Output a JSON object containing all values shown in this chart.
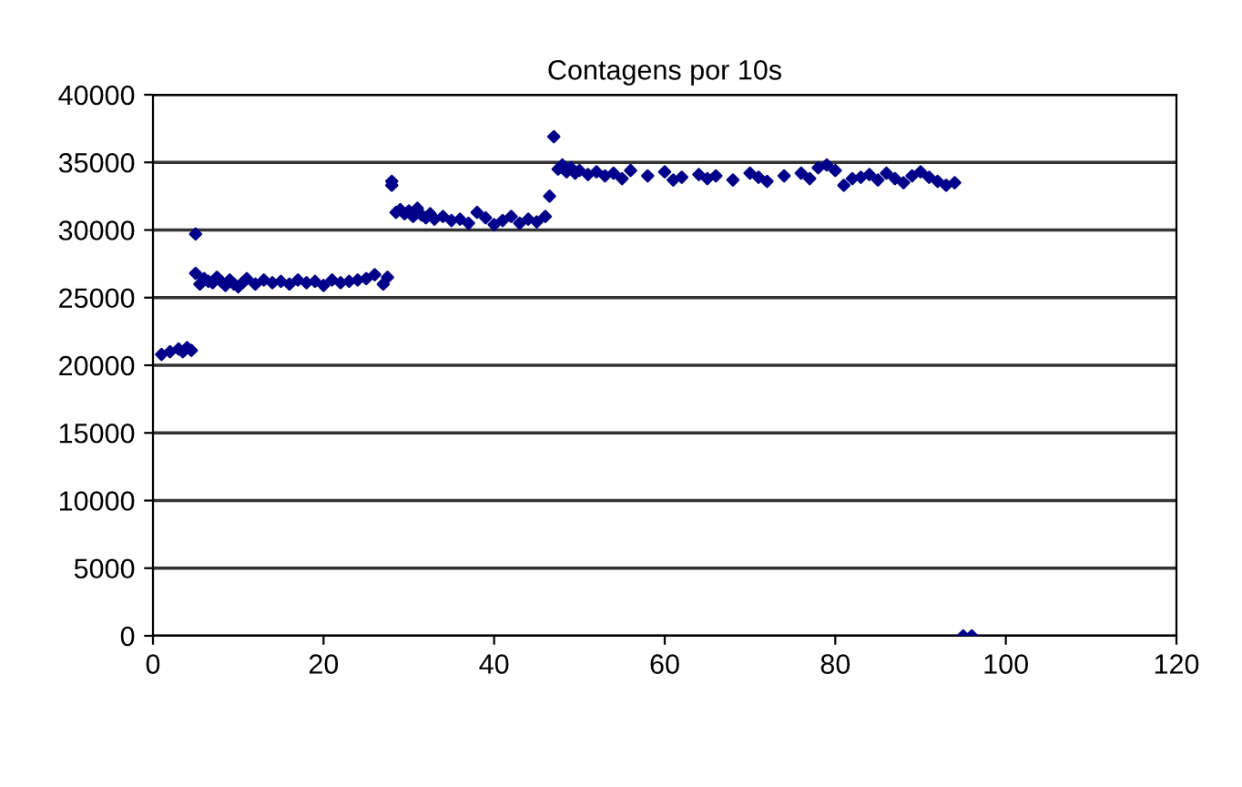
{
  "chart_data": {
    "type": "scatter",
    "title": "Contagens por 10s",
    "xlim": [
      0,
      120
    ],
    "xticks": [
      0,
      20,
      40,
      60,
      80,
      100,
      120
    ],
    "ylim": [
      0,
      40000
    ],
    "yticks": [
      0,
      5000,
      10000,
      15000,
      20000,
      25000,
      30000,
      35000,
      40000
    ],
    "grid": "y",
    "marker": "diamond",
    "series": [
      {
        "color": "#00008b",
        "x": [
          1,
          2,
          3,
          3.5,
          4,
          4.5,
          5,
          5,
          5.5,
          6,
          6.5,
          7,
          7.5,
          8,
          8.5,
          9,
          9.5,
          10,
          10.5,
          11,
          12,
          13,
          14,
          15,
          16,
          17,
          18,
          19,
          20,
          21,
          22,
          23,
          24,
          25,
          26,
          27,
          27.5,
          28,
          28,
          28.5,
          29,
          29.5,
          30,
          30.5,
          31,
          31.5,
          32,
          32.5,
          33,
          34,
          35,
          36,
          37,
          38,
          39,
          40,
          41,
          42,
          43,
          44,
          45,
          46,
          46.5,
          47,
          47.5,
          48,
          48.5,
          49,
          49.5,
          50,
          51,
          52,
          53,
          54,
          55,
          56,
          58,
          60,
          61,
          62,
          64,
          65,
          66,
          68,
          70,
          71,
          72,
          74,
          76,
          77,
          78,
          79,
          80,
          81,
          82,
          83,
          84,
          85,
          86,
          87,
          88,
          89,
          90,
          91,
          92,
          93,
          94,
          95,
          96
        ],
        "values": [
          20800,
          21000,
          21200,
          21000,
          21300,
          21100,
          29700,
          26800,
          26000,
          26400,
          26200,
          26100,
          26500,
          26200,
          25900,
          26300,
          26000,
          25800,
          26100,
          26400,
          26000,
          26300,
          26100,
          26200,
          26000,
          26300,
          26100,
          26200,
          25900,
          26300,
          26100,
          26200,
          26300,
          26400,
          26700,
          26000,
          26500,
          33300,
          33600,
          31300,
          31500,
          31200,
          31400,
          31000,
          31600,
          31100,
          30900,
          31200,
          30800,
          31000,
          30700,
          30800,
          30500,
          31300,
          30900,
          30400,
          30700,
          31000,
          30500,
          30800,
          30600,
          31000,
          32500,
          36900,
          34500,
          34800,
          34300,
          34600,
          34200,
          34400,
          34100,
          34300,
          34000,
          34200,
          33800,
          34400,
          34000,
          34300,
          33700,
          33900,
          34100,
          33800,
          34000,
          33700,
          34200,
          33900,
          33600,
          34000,
          34200,
          33800,
          34600,
          34800,
          34400,
          33300,
          33800,
          33900,
          34100,
          33700,
          34200,
          33800,
          33500,
          34000,
          34300,
          33900,
          33600,
          33300,
          33500,
          0,
          0
        ]
      }
    ]
  }
}
